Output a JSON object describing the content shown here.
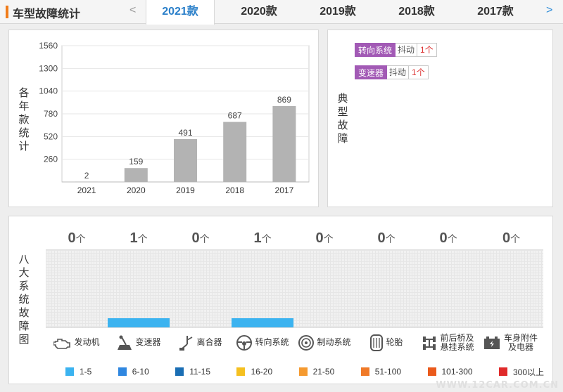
{
  "header": {
    "title": "车型故障统计",
    "prev_arrow": "<",
    "next_arrow": ">",
    "years": [
      "2021款",
      "2020款",
      "2019款",
      "2018款",
      "2017款"
    ],
    "active_year_index": 0
  },
  "chart_panel": {
    "ylabel": "各年款统计"
  },
  "chart_data": {
    "type": "bar",
    "categories": [
      "2021",
      "2020",
      "2019",
      "2018",
      "2017"
    ],
    "values": [
      2,
      159,
      491,
      687,
      869
    ],
    "yticks": [
      260,
      520,
      780,
      1040,
      1300,
      1560
    ],
    "ylim": [
      0,
      1560
    ],
    "ylabel": "各年款统计",
    "grid": true,
    "bar_color": "#b3b3b3"
  },
  "typical_panel": {
    "label": "典型故障",
    "faults": [
      {
        "system": "转向系统",
        "symptom": "抖动",
        "count": "1个"
      },
      {
        "system": "变速器",
        "symptom": "抖动",
        "count": "1个"
      }
    ]
  },
  "systems_panel": {
    "label": "八大系统故障图",
    "unit": "个",
    "systems": [
      {
        "name": "发动机",
        "count": "0",
        "icon": "engine-icon",
        "level": 0
      },
      {
        "name": "变速器",
        "count": "1",
        "icon": "gear-shifter-icon",
        "level": 1
      },
      {
        "name": "离合器",
        "count": "0",
        "icon": "clutch-pedal-icon",
        "level": 0
      },
      {
        "name": "转向系统",
        "count": "1",
        "icon": "steering-wheel-icon",
        "level": 1
      },
      {
        "name": "制动系统",
        "count": "0",
        "icon": "brake-disc-icon",
        "level": 0
      },
      {
        "name": "轮胎",
        "count": "0",
        "icon": "tire-icon",
        "level": 0
      },
      {
        "name": "前后桥及悬挂系统",
        "count": "0",
        "icon": "axle-icon",
        "level": 0
      },
      {
        "name": "车身附件及电器",
        "count": "0",
        "icon": "battery-icon",
        "level": 0
      }
    ],
    "legend": [
      {
        "label": "1-5",
        "color": "#3bb3f0"
      },
      {
        "label": "6-10",
        "color": "#2f87e0"
      },
      {
        "label": "11-15",
        "color": "#1a6eb4"
      },
      {
        "label": "16-20",
        "color": "#f5c020"
      },
      {
        "label": "21-50",
        "color": "#f59a30"
      },
      {
        "label": "51-100",
        "color": "#f07a28"
      },
      {
        "label": "101-300",
        "color": "#ea5a1c"
      },
      {
        "label": "300以上",
        "color": "#e02a2a"
      }
    ]
  },
  "watermark": "WWW.12CAR.COM.CN"
}
